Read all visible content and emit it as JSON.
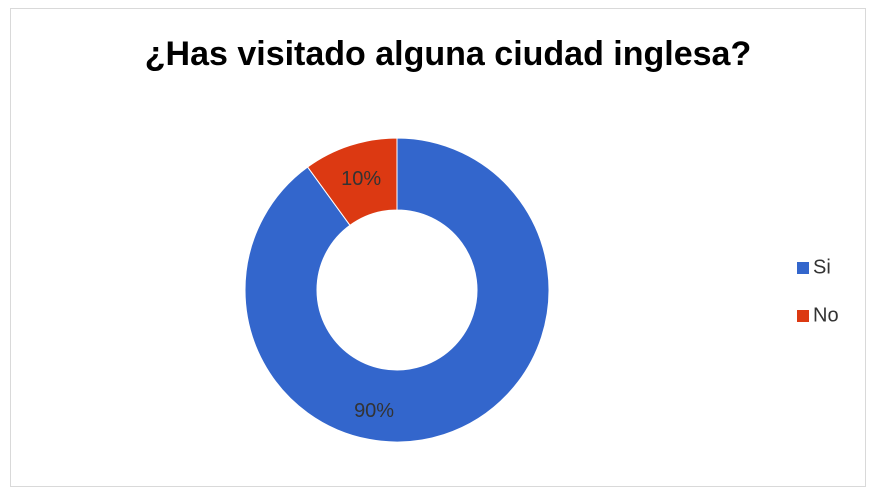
{
  "chart_data": {
    "type": "donut",
    "title": "¿Has visitado alguna ciudad inglesa?",
    "categories": [
      "Si",
      "No"
    ],
    "values": [
      90,
      10
    ],
    "value_labels": [
      "90%",
      "10%"
    ],
    "colors": [
      "#3366cc",
      "#dc3912"
    ],
    "legend": "right"
  }
}
